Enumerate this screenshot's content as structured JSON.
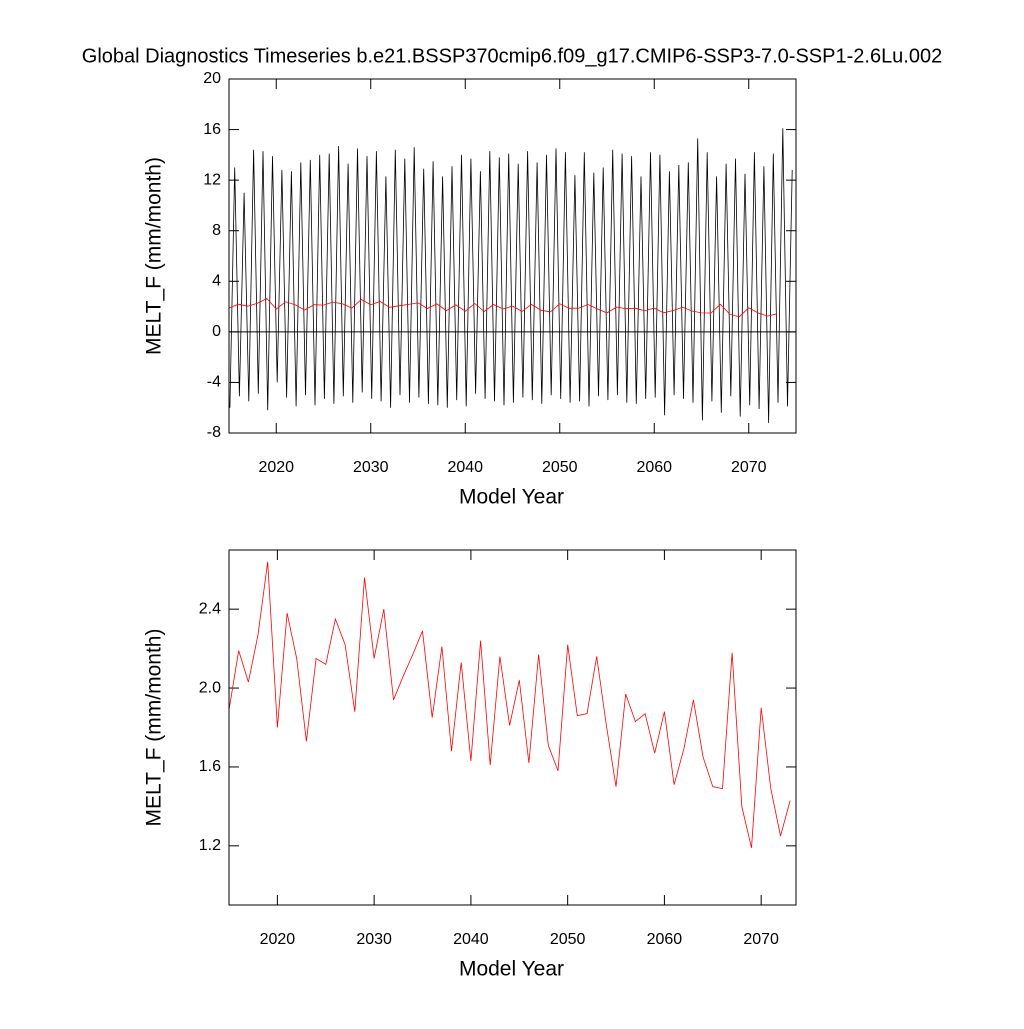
{
  "chart_data": [
    {
      "type": "line",
      "title": "Global Diagnostics Timeseries b.e21.BSSP370cmip6.f09_g17.CMIP6-SSP3-7.0-SSP1-2.6Lu.002",
      "x_label": "Model Year",
      "y_label": "MELT_F (mm/month)",
      "xlim": [
        2015,
        2075
      ],
      "xticks": [
        2020,
        2030,
        2040,
        2050,
        2060,
        2070
      ],
      "ylim": [
        -8,
        20
      ],
      "yticks": [
        -8,
        -4,
        0,
        4,
        8,
        12,
        16,
        20
      ],
      "series": [
        {
          "color": "#000000",
          "x": [
            2015.1,
            2015.6,
            2016.1,
            2016.6,
            2017.1,
            2017.6,
            2018.1,
            2018.6,
            2019.1,
            2019.6,
            2020.1,
            2020.6,
            2021.1,
            2021.6,
            2022.1,
            2022.6,
            2023.1,
            2023.6,
            2024.1,
            2024.6,
            2025.1,
            2025.6,
            2026.1,
            2026.6,
            2027.1,
            2027.6,
            2028.1,
            2028.6,
            2029.1,
            2029.6,
            2030.1,
            2030.6,
            2031.1,
            2031.6,
            2032.1,
            2032.6,
            2033.1,
            2033.6,
            2034.1,
            2034.6,
            2035.1,
            2035.6,
            2036.1,
            2036.6,
            2037.1,
            2037.6,
            2038.1,
            2038.6,
            2039.1,
            2039.6,
            2040.1,
            2040.6,
            2041.1,
            2041.6,
            2042.1,
            2042.6,
            2043.1,
            2043.6,
            2044.1,
            2044.6,
            2045.1,
            2045.6,
            2046.1,
            2046.6,
            2047.1,
            2047.6,
            2048.1,
            2048.6,
            2049.1,
            2049.6,
            2050.1,
            2050.6,
            2051.1,
            2051.6,
            2052.1,
            2052.6,
            2053.1,
            2053.6,
            2054.1,
            2054.6,
            2055.1,
            2055.6,
            2056.1,
            2056.6,
            2057.1,
            2057.6,
            2058.1,
            2058.6,
            2059.1,
            2059.6,
            2060.1,
            2060.6,
            2061.1,
            2061.6,
            2062.1,
            2062.6,
            2063.1,
            2063.6,
            2064.1,
            2064.6,
            2065.1,
            2065.6,
            2066.1,
            2066.6,
            2067.1,
            2067.6,
            2068.1,
            2068.6,
            2069.1,
            2069.6,
            2070.1,
            2070.6,
            2071.1,
            2071.6,
            2072.1,
            2072.6,
            2073.1,
            2073.6,
            2074.1,
            2074.6
          ],
          "values": [
            -6.0,
            13,
            -5.1,
            11,
            -5.5,
            14.4,
            -4.9,
            14.3,
            -6.2,
            13.9,
            -4.0,
            12.8,
            -5.2,
            12.7,
            -5.9,
            13.4,
            -5.0,
            13.6,
            -5.8,
            14.0,
            -5.3,
            14.1,
            -5.7,
            14.7,
            -5.1,
            13.3,
            -5.6,
            14.5,
            -4.8,
            13.9,
            -5.3,
            14.3,
            -5.5,
            12.3,
            -6.0,
            14.4,
            -5.0,
            13.7,
            -5.6,
            14.6,
            -5.2,
            12.9,
            -5.7,
            13.5,
            -5.8,
            12.3,
            -6.0,
            13.1,
            -5.4,
            14.0,
            -5.9,
            13.7,
            -4.9,
            12.7,
            -5.3,
            14.3,
            -5.5,
            13.8,
            -5.8,
            14.1,
            -5.6,
            13.3,
            -5.2,
            14.3,
            -5.4,
            13.4,
            -5.7,
            14.0,
            -5.0,
            14.5,
            -5.3,
            14.2,
            -5.6,
            12.4,
            -5.5,
            14.2,
            -5.9,
            12.6,
            -5.1,
            13.0,
            -5.4,
            14.4,
            -5.0,
            14.1,
            -5.6,
            13.9,
            -5.7,
            12.3,
            -5.3,
            14.2,
            -5.2,
            14.0,
            -6.6,
            12.7,
            -5.0,
            13.2,
            -5.3,
            13.4,
            -5.6,
            15.3,
            -7.0,
            14.2,
            -5.5,
            12.3,
            -6.4,
            13.3,
            -5.1,
            13.7,
            -6.7,
            12.5,
            -5.8,
            14.2,
            -6.1,
            13.1,
            -7.2,
            14.1,
            -5.6,
            16.1,
            -5.9,
            12.8
          ]
        },
        {
          "color": "#ff0000",
          "x": [
            2015,
            2016,
            2017,
            2018,
            2019,
            2020,
            2021,
            2022,
            2023,
            2024,
            2025,
            2026,
            2027,
            2028,
            2029,
            2030,
            2031,
            2032,
            2033,
            2034,
            2035,
            2036,
            2037,
            2038,
            2039,
            2040,
            2041,
            2042,
            2043,
            2044,
            2045,
            2046,
            2047,
            2048,
            2049,
            2050,
            2051,
            2052,
            2053,
            2054,
            2055,
            2056,
            2057,
            2058,
            2059,
            2060,
            2061,
            2062,
            2063,
            2064,
            2065,
            2066,
            2067,
            2068,
            2069,
            2070,
            2071,
            2072,
            2073
          ],
          "values": [
            1.89,
            2.19,
            2.03,
            2.27,
            2.64,
            1.8,
            2.38,
            2.15,
            1.73,
            2.15,
            2.12,
            2.35,
            2.22,
            1.88,
            2.56,
            2.15,
            2.4,
            1.94,
            2.06,
            2.17,
            2.29,
            1.85,
            2.21,
            1.68,
            2.13,
            1.63,
            2.24,
            1.61,
            2.16,
            1.81,
            2.04,
            1.62,
            2.17,
            1.71,
            1.58,
            2.22,
            1.86,
            1.87,
            2.16,
            1.81,
            1.5,
            1.97,
            1.83,
            1.87,
            1.67,
            1.88,
            1.51,
            1.69,
            1.94,
            1.65,
            1.5,
            1.49,
            2.18,
            1.4,
            1.19,
            1.9,
            1.49,
            1.25,
            1.43
          ]
        }
      ]
    },
    {
      "type": "line",
      "x_label": "Model Year",
      "y_label": "MELT_F (mm/month)",
      "xlim": [
        2015,
        2073.6
      ],
      "xticks": [
        2020,
        2030,
        2040,
        2050,
        2060,
        2070
      ],
      "ylim": [
        0.9,
        2.7
      ],
      "yticks": [
        1.2,
        1.6,
        {
          "value": 2,
          "label": "2.0"
        },
        2.4
      ],
      "series": [
        {
          "color": "#ff0000",
          "x": [
            2015,
            2016,
            2017,
            2018,
            2019,
            2020,
            2021,
            2022,
            2023,
            2024,
            2025,
            2026,
            2027,
            2028,
            2029,
            2030,
            2031,
            2032,
            2033,
            2034,
            2035,
            2036,
            2037,
            2038,
            2039,
            2040,
            2041,
            2042,
            2043,
            2044,
            2045,
            2046,
            2047,
            2048,
            2049,
            2050,
            2051,
            2052,
            2053,
            2054,
            2055,
            2056,
            2057,
            2058,
            2059,
            2060,
            2061,
            2062,
            2063,
            2064,
            2065,
            2066,
            2067,
            2068,
            2069,
            2070,
            2071,
            2072,
            2073
          ],
          "values": [
            1.89,
            2.19,
            2.03,
            2.27,
            2.64,
            1.8,
            2.38,
            2.15,
            1.73,
            2.15,
            2.12,
            2.35,
            2.22,
            1.88,
            2.56,
            2.15,
            2.4,
            1.94,
            2.06,
            2.17,
            2.29,
            1.85,
            2.21,
            1.68,
            2.13,
            1.63,
            2.24,
            1.61,
            2.16,
            1.81,
            2.04,
            1.62,
            2.17,
            1.71,
            1.58,
            2.22,
            1.86,
            1.87,
            2.16,
            1.81,
            1.5,
            1.97,
            1.83,
            1.87,
            1.67,
            1.88,
            1.51,
            1.69,
            1.94,
            1.65,
            1.5,
            1.49,
            2.18,
            1.4,
            1.19,
            1.9,
            1.49,
            1.25,
            1.43
          ]
        }
      ]
    }
  ]
}
